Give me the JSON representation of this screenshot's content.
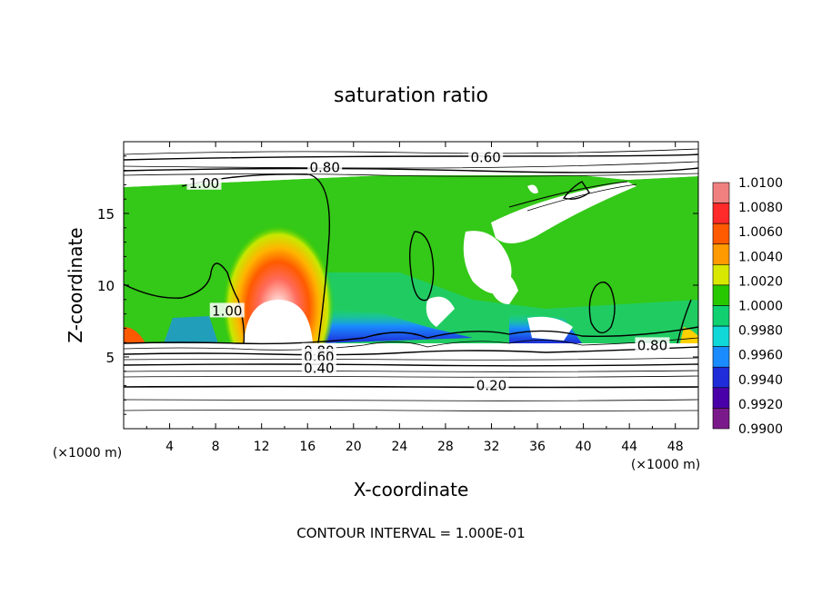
{
  "chart_data": {
    "type": "heatmap",
    "title": "saturation ratio",
    "xlabel": "X-coordinate",
    "ylabel": "Z-coordinate",
    "x_unit": "(×1000 m)",
    "z_unit": "(×1000 m)",
    "xlim": [
      0,
      50
    ],
    "ylim": [
      0,
      20
    ],
    "x_ticks": [
      "4",
      "8",
      "12",
      "16",
      "20",
      "24",
      "28",
      "32",
      "36",
      "40",
      "44",
      "48"
    ],
    "y_ticks": [
      "5",
      "10",
      "15"
    ],
    "footer": "CONTOUR INTERVAL = 1.000E-01",
    "colorbar": {
      "labels": [
        "1.0100",
        "1.0080",
        "1.0060",
        "1.0040",
        "1.0020",
        "1.0000",
        "0.9980",
        "0.9960",
        "0.9940",
        "0.9920",
        "0.9900"
      ],
      "colors": [
        "#f08080",
        "#ff2a2a",
        "#ff5a00",
        "#ff9a00",
        "#d8e800",
        "#28c800",
        "#10d070",
        "#10d8d8",
        "#1a8cff",
        "#1e2dd8",
        "#4a00a8",
        "#7a1a8a"
      ]
    },
    "contour_labels": [
      {
        "text": "0.60",
        "x": 31.5,
        "z": 18.9
      },
      {
        "text": "0.80",
        "x": 17.5,
        "z": 18.2
      },
      {
        "text": "1.00",
        "x": 7.0,
        "z": 17.1
      },
      {
        "text": "1.00",
        "x": 9.0,
        "z": 8.2
      },
      {
        "text": "0.80",
        "x": 46.0,
        "z": 5.8
      },
      {
        "text": "0.80",
        "x": 17.0,
        "z": 5.4
      },
      {
        "text": "0.60",
        "x": 17.0,
        "z": 5.0
      },
      {
        "text": "0.40",
        "x": 17.0,
        "z": 4.2
      },
      {
        "text": "0.20",
        "x": 32.0,
        "z": 3.0
      }
    ],
    "contour_levels": [
      0.2,
      0.4,
      0.6,
      0.8,
      1.0
    ]
  }
}
